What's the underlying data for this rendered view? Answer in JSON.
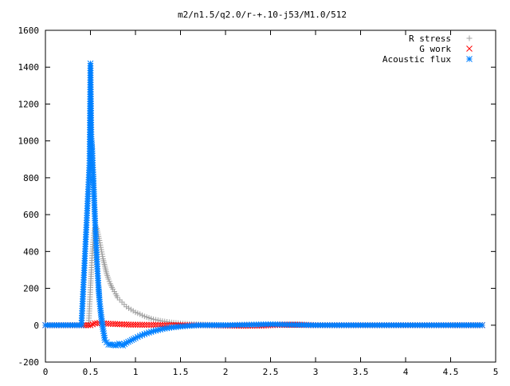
{
  "chart_data": {
    "type": "scatter",
    "title": "m2/n1.5/q2.0/r-+.10-j53/M1.0/512",
    "xlabel": "",
    "ylabel": "",
    "xlim": [
      0,
      5
    ],
    "ylim": [
      -200,
      1600
    ],
    "xticks": [
      "0",
      "0.5",
      "1",
      "1.5",
      "2",
      "2.5",
      "3",
      "3.5",
      "4",
      "4.5",
      "5"
    ],
    "xtick_values": [
      0,
      0.5,
      1,
      1.5,
      2,
      2.5,
      3,
      3.5,
      4,
      4.5,
      5
    ],
    "yticks": [
      "-200",
      "0",
      "200",
      "400",
      "600",
      "800",
      "1000",
      "1200",
      "1400",
      "1600"
    ],
    "ytick_values": [
      -200,
      0,
      200,
      400,
      600,
      800,
      1000,
      1200,
      1400,
      1600
    ],
    "grid": false,
    "legend_position": "top-right",
    "series": [
      {
        "name": "R stress",
        "marker": "plus",
        "color": "#a0a0a0",
        "x": [
          0.0,
          0.1,
          0.2,
          0.3,
          0.4,
          0.46,
          0.48,
          0.5,
          0.51,
          0.52,
          0.53,
          0.54,
          0.55,
          0.56,
          0.57,
          0.58,
          0.6,
          0.62,
          0.64,
          0.66,
          0.68,
          0.7,
          0.72,
          0.75,
          0.78,
          0.8,
          0.85,
          0.9,
          0.95,
          1.0,
          1.05,
          1.1,
          1.15,
          1.2,
          1.3,
          1.4,
          1.5,
          1.6,
          1.7,
          1.8,
          1.9,
          2.0,
          2.5,
          3.0,
          3.5,
          4.0,
          4.5,
          4.85
        ],
        "y": [
          0,
          0,
          0,
          0,
          0,
          0,
          0,
          205,
          300,
          390,
          450,
          500,
          525,
          535,
          525,
          505,
          460,
          410,
          360,
          320,
          280,
          250,
          225,
          195,
          170,
          150,
          125,
          100,
          85,
          70,
          60,
          48,
          40,
          32,
          22,
          15,
          10,
          7,
          5,
          3,
          2,
          0,
          0,
          0,
          0,
          0,
          0,
          0
        ]
      },
      {
        "name": "G work",
        "marker": "cross",
        "color": "#ff0000",
        "x": [
          0.0,
          0.2,
          0.4,
          0.5,
          0.55,
          0.6,
          0.65,
          0.7,
          0.75,
          0.8,
          0.85,
          0.9,
          0.95,
          1.0,
          1.1,
          1.2,
          1.3,
          1.4,
          1.5,
          1.6,
          1.7,
          1.8,
          2.0,
          2.2,
          2.4,
          2.6,
          2.8,
          3.0,
          3.5,
          4.0,
          4.5,
          4.85
        ],
        "y": [
          0,
          0,
          0,
          0,
          10,
          12,
          10,
          8,
          7,
          6,
          5,
          4,
          3,
          3,
          2,
          2,
          1,
          1,
          0,
          0,
          0,
          0,
          -2,
          -3,
          -2,
          2,
          3,
          0,
          0,
          0,
          0,
          0
        ]
      },
      {
        "name": "Acoustic flux",
        "marker": "star",
        "color": "#0080ff",
        "x": [
          0.0,
          0.1,
          0.2,
          0.3,
          0.4,
          0.49,
          0.5,
          0.51,
          0.52,
          0.53,
          0.54,
          0.55,
          0.56,
          0.57,
          0.58,
          0.59,
          0.6,
          0.61,
          0.62,
          0.64,
          0.66,
          0.7,
          0.74,
          0.78,
          0.82,
          0.86,
          0.9,
          0.94,
          1.0,
          1.05,
          1.1,
          1.15,
          1.2,
          1.3,
          1.4,
          1.5,
          1.6,
          1.7,
          1.8,
          2.0,
          2.5,
          3.0,
          3.5,
          4.0,
          4.5,
          4.85
        ],
        "y": [
          0,
          0,
          0,
          0,
          0,
          880,
          1420,
          1010,
          945,
          830,
          700,
          580,
          470,
          370,
          280,
          205,
          140,
          90,
          45,
          -20,
          -80,
          -105,
          -105,
          -110,
          -100,
          -110,
          -95,
          -85,
          -70,
          -58,
          -48,
          -40,
          -32,
          -20,
          -12,
          -7,
          -3,
          0,
          0,
          0,
          5,
          0,
          0,
          0,
          0,
          0
        ]
      }
    ]
  }
}
